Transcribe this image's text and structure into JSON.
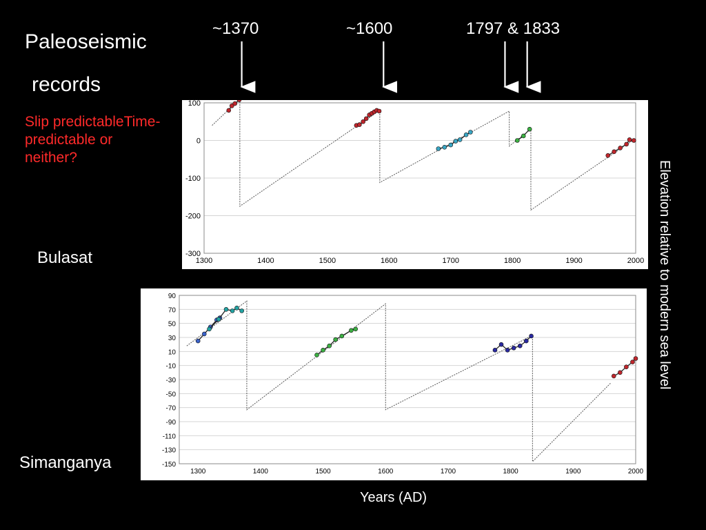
{
  "slide": {
    "title_line1": "Paleoseismic",
    "title_line2": "records",
    "question": "Slip predictableTime-predictable or neither?",
    "events": [
      "~1370",
      "~1600",
      "1797 & 1833"
    ],
    "event_years": [
      1370,
      1600,
      1797,
      1833
    ],
    "y_axis_label": "Elevation relative to modern sea level",
    "x_axis_label": "Years (AD)"
  },
  "chart_data": [
    {
      "type": "line",
      "site": "Bulasat",
      "xlim": [
        1300,
        2000
      ],
      "ylim": [
        -300,
        100
      ],
      "x_ticks": [
        1300,
        1400,
        1500,
        1600,
        1700,
        1800,
        1900,
        2000
      ],
      "y_ticks": [
        100,
        0,
        -100,
        -200,
        -300
      ],
      "grid": true,
      "sawtooth": [
        [
          1313,
          40
        ],
        [
          1358,
          110
        ],
        [
          1358,
          -175
        ],
        [
          1585,
          80
        ],
        [
          1585,
          -112
        ],
        [
          1795,
          78
        ],
        [
          1795,
          -15
        ],
        [
          1830,
          30
        ],
        [
          1830,
          -185
        ],
        [
          1995,
          0
        ]
      ],
      "series": [
        {
          "color": "#c0272d",
          "points": [
            [
              1340,
              80
            ],
            [
              1345,
              92
            ],
            [
              1350,
              98
            ],
            [
              1357,
              108
            ]
          ]
        },
        {
          "color": "#c0272d",
          "points": [
            [
              1547,
              40
            ],
            [
              1552,
              42
            ],
            [
              1558,
              50
            ],
            [
              1563,
              58
            ],
            [
              1568,
              68
            ],
            [
              1572,
              72
            ],
            [
              1576,
              76
            ],
            [
              1580,
              80
            ],
            [
              1584,
              78
            ]
          ]
        },
        {
          "color": "#3aa6c4",
          "points": [
            [
              1680,
              -22
            ],
            [
              1690,
              -18
            ],
            [
              1700,
              -12
            ],
            [
              1708,
              -2
            ],
            [
              1715,
              2
            ],
            [
              1725,
              15
            ],
            [
              1732,
              22
            ]
          ]
        },
        {
          "color": "#3cb043",
          "points": [
            [
              1808,
              0
            ],
            [
              1818,
              12
            ],
            [
              1828,
              30
            ]
          ]
        },
        {
          "color": "#c0272d",
          "points": [
            [
              1955,
              -40
            ],
            [
              1965,
              -30
            ],
            [
              1975,
              -20
            ],
            [
              1985,
              -10
            ],
            [
              1990,
              2
            ],
            [
              1997,
              0
            ]
          ]
        }
      ]
    },
    {
      "type": "line",
      "site": "Simanganya",
      "xlim": [
        1270,
        2000
      ],
      "ylim": [
        -150,
        90
      ],
      "x_ticks": [
        1300,
        1400,
        1500,
        1600,
        1700,
        1800,
        1900,
        2000
      ],
      "y_ticks": [
        90,
        70,
        50,
        30,
        10,
        -10,
        -30,
        -50,
        -70,
        -90,
        -110,
        -130,
        -150
      ],
      "grid": true,
      "sawtooth": [
        [
          1282,
          18
        ],
        [
          1378,
          82
        ],
        [
          1378,
          -73
        ],
        [
          1600,
          78
        ],
        [
          1600,
          -73
        ],
        [
          1835,
          33
        ],
        [
          1835,
          -147
        ],
        [
          1960,
          -35
        ]
      ],
      "series": [
        {
          "color": "#3a62c9",
          "points": [
            [
              1300,
              25
            ],
            [
              1310,
              35
            ],
            [
              1320,
              45
            ],
            [
              1330,
              55
            ],
            [
              1335,
              58
            ]
          ]
        },
        {
          "color": "#24a3a3",
          "points": [
            [
              1318,
              42
            ],
            [
              1333,
              56
            ],
            [
              1345,
              70
            ],
            [
              1355,
              68
            ],
            [
              1362,
              72
            ],
            [
              1370,
              68
            ]
          ]
        },
        {
          "color": "#3cb043",
          "points": [
            [
              1490,
              5
            ],
            [
              1500,
              12
            ],
            [
              1510,
              18
            ],
            [
              1520,
              27
            ],
            [
              1530,
              32
            ],
            [
              1545,
              40
            ],
            [
              1552,
              42
            ]
          ]
        },
        {
          "color": "#2a2aa0",
          "points": [
            [
              1775,
              12
            ],
            [
              1785,
              20
            ],
            [
              1795,
              12
            ],
            [
              1805,
              15
            ],
            [
              1815,
              18
            ],
            [
              1825,
              25
            ],
            [
              1833,
              32
            ]
          ]
        },
        {
          "color": "#c0272d",
          "points": [
            [
              1965,
              -25
            ],
            [
              1975,
              -20
            ],
            [
              1985,
              -12
            ],
            [
              1995,
              -5
            ],
            [
              2000,
              0
            ]
          ]
        }
      ]
    }
  ]
}
